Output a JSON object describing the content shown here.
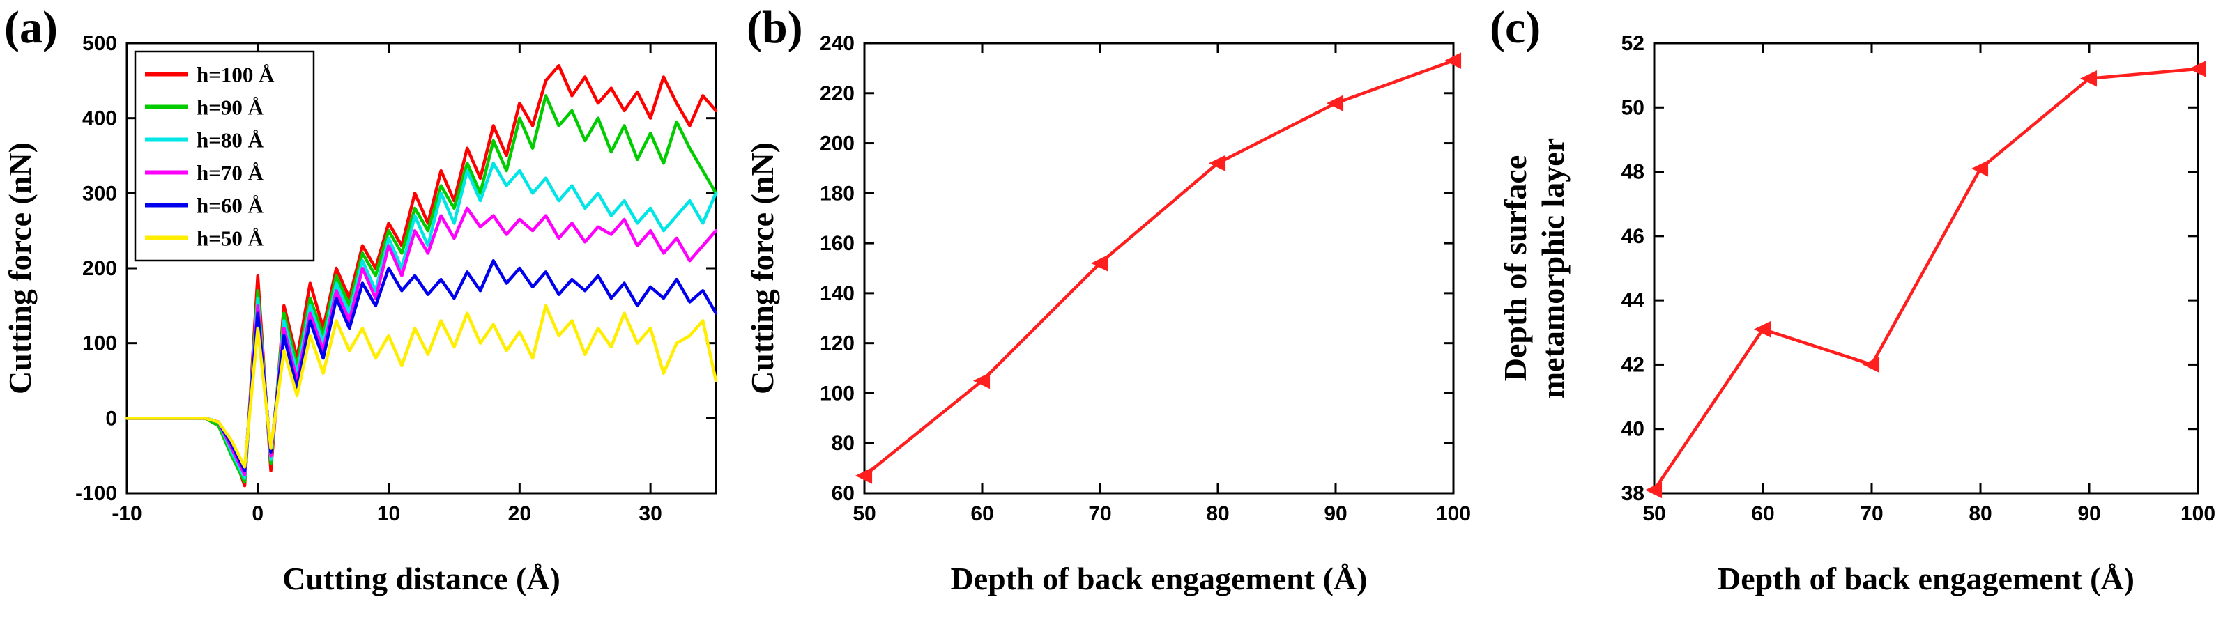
{
  "figure": {
    "background": "#ffffff",
    "axis_color": "#000000"
  },
  "panels": [
    {
      "label": "(a)"
    },
    {
      "label": "(b)"
    },
    {
      "label": "(c)"
    }
  ],
  "chart_data": [
    {
      "type": "line",
      "title": "",
      "xlabel": "Cutting distance (Å)",
      "ylabel": "Cutting force (nN)",
      "xlim": [
        -10,
        35
      ],
      "ylim": [
        -100,
        500
      ],
      "xticks": [
        -10,
        0,
        10,
        20,
        30
      ],
      "yticks": [
        -100,
        0,
        100,
        200,
        300,
        400,
        500
      ],
      "grid": false,
      "legend_position": "top-left",
      "x": [
        -10,
        -9,
        -8,
        -7,
        -6,
        -5,
        -4,
        -3,
        -2,
        -1,
        0,
        1,
        2,
        3,
        4,
        5,
        6,
        7,
        8,
        9,
        10,
        11,
        12,
        13,
        14,
        15,
        16,
        17,
        18,
        19,
        20,
        21,
        22,
        23,
        24,
        25,
        26,
        27,
        28,
        29,
        30,
        31,
        32,
        33,
        34,
        35
      ],
      "series": [
        {
          "name": "h=100 Å",
          "color": "#ff0000",
          "values": [
            0,
            0,
            0,
            0,
            0,
            0,
            0,
            -10,
            -40,
            -90,
            190,
            -70,
            150,
            80,
            180,
            120,
            200,
            160,
            230,
            200,
            260,
            230,
            300,
            260,
            330,
            290,
            360,
            320,
            390,
            350,
            420,
            390,
            450,
            470,
            430,
            455,
            420,
            440,
            410,
            435,
            400,
            455,
            420,
            390,
            430,
            410
          ]
        },
        {
          "name": "h=90 Å",
          "color": "#00cc00",
          "values": [
            0,
            0,
            0,
            0,
            0,
            0,
            0,
            -10,
            -50,
            -85,
            170,
            -60,
            140,
            70,
            160,
            110,
            190,
            150,
            220,
            190,
            250,
            220,
            280,
            250,
            310,
            280,
            340,
            300,
            370,
            330,
            400,
            360,
            430,
            390,
            410,
            370,
            400,
            355,
            390,
            345,
            380,
            340,
            395,
            360,
            330,
            300
          ]
        },
        {
          "name": "h=80 Å",
          "color": "#00e5e5",
          "values": [
            0,
            0,
            0,
            0,
            0,
            0,
            0,
            -5,
            -45,
            -80,
            160,
            -55,
            130,
            60,
            150,
            100,
            180,
            140,
            210,
            170,
            240,
            200,
            270,
            230,
            300,
            260,
            330,
            290,
            340,
            310,
            330,
            300,
            320,
            290,
            310,
            280,
            300,
            270,
            290,
            260,
            280,
            250,
            270,
            290,
            260,
            300
          ]
        },
        {
          "name": "h=70 Å",
          "color": "#ff00ff",
          "values": [
            0,
            0,
            0,
            0,
            0,
            0,
            0,
            -5,
            -40,
            -75,
            150,
            -50,
            120,
            50,
            140,
            90,
            170,
            130,
            200,
            160,
            230,
            190,
            250,
            220,
            270,
            240,
            280,
            255,
            270,
            245,
            265,
            250,
            270,
            240,
            260,
            235,
            255,
            245,
            265,
            230,
            250,
            220,
            240,
            210,
            230,
            250
          ]
        },
        {
          "name": "h=60 Å",
          "color": "#0000ee",
          "values": [
            0,
            0,
            0,
            0,
            0,
            0,
            0,
            -5,
            -35,
            -70,
            140,
            -45,
            110,
            40,
            130,
            80,
            160,
            120,
            180,
            150,
            200,
            170,
            190,
            165,
            185,
            160,
            195,
            170,
            210,
            180,
            200,
            175,
            195,
            165,
            185,
            170,
            190,
            160,
            180,
            150,
            175,
            160,
            185,
            155,
            170,
            140
          ]
        },
        {
          "name": "h=50 Å",
          "color": "#ffee00",
          "values": [
            0,
            0,
            0,
            0,
            0,
            0,
            0,
            -5,
            -30,
            -65,
            120,
            -40,
            90,
            30,
            110,
            60,
            130,
            90,
            120,
            80,
            110,
            70,
            120,
            85,
            130,
            95,
            140,
            100,
            125,
            90,
            115,
            80,
            150,
            110,
            130,
            85,
            120,
            95,
            140,
            100,
            120,
            60,
            100,
            110,
            130,
            50
          ]
        }
      ]
    },
    {
      "type": "line",
      "title": "",
      "xlabel": "Depth of back engagement (Å)",
      "ylabel": "Cutting force (nN)",
      "xlim": [
        50,
        100
      ],
      "ylim": [
        60,
        240
      ],
      "xticks": [
        50,
        60,
        70,
        80,
        90,
        100
      ],
      "yticks": [
        60,
        80,
        100,
        120,
        140,
        160,
        180,
        200,
        220,
        240
      ],
      "grid": false,
      "x": [
        50,
        60,
        70,
        80,
        90,
        100
      ],
      "series": [
        {
          "name": "cutting force",
          "color": "#ff1f1f",
          "marker": "triangle-left",
          "values": [
            67,
            105,
            152,
            192,
            216,
            233
          ]
        }
      ]
    },
    {
      "type": "line",
      "title": "",
      "xlabel": "Depth of back engagement (Å)",
      "ylabel": "Depth of surface\nmetamorphic layer",
      "xlim": [
        50,
        100
      ],
      "ylim": [
        38,
        52
      ],
      "xticks": [
        50,
        60,
        70,
        80,
        90,
        100
      ],
      "yticks": [
        38,
        40,
        42,
        44,
        46,
        48,
        50,
        52
      ],
      "grid": false,
      "x": [
        50,
        60,
        70,
        80,
        90,
        100
      ],
      "series": [
        {
          "name": "depth of surface metamorphic layer",
          "color": "#ff1f1f",
          "marker": "triangle-left",
          "values": [
            38.1,
            43.1,
            42.0,
            48.1,
            50.9,
            51.2
          ]
        }
      ]
    }
  ]
}
